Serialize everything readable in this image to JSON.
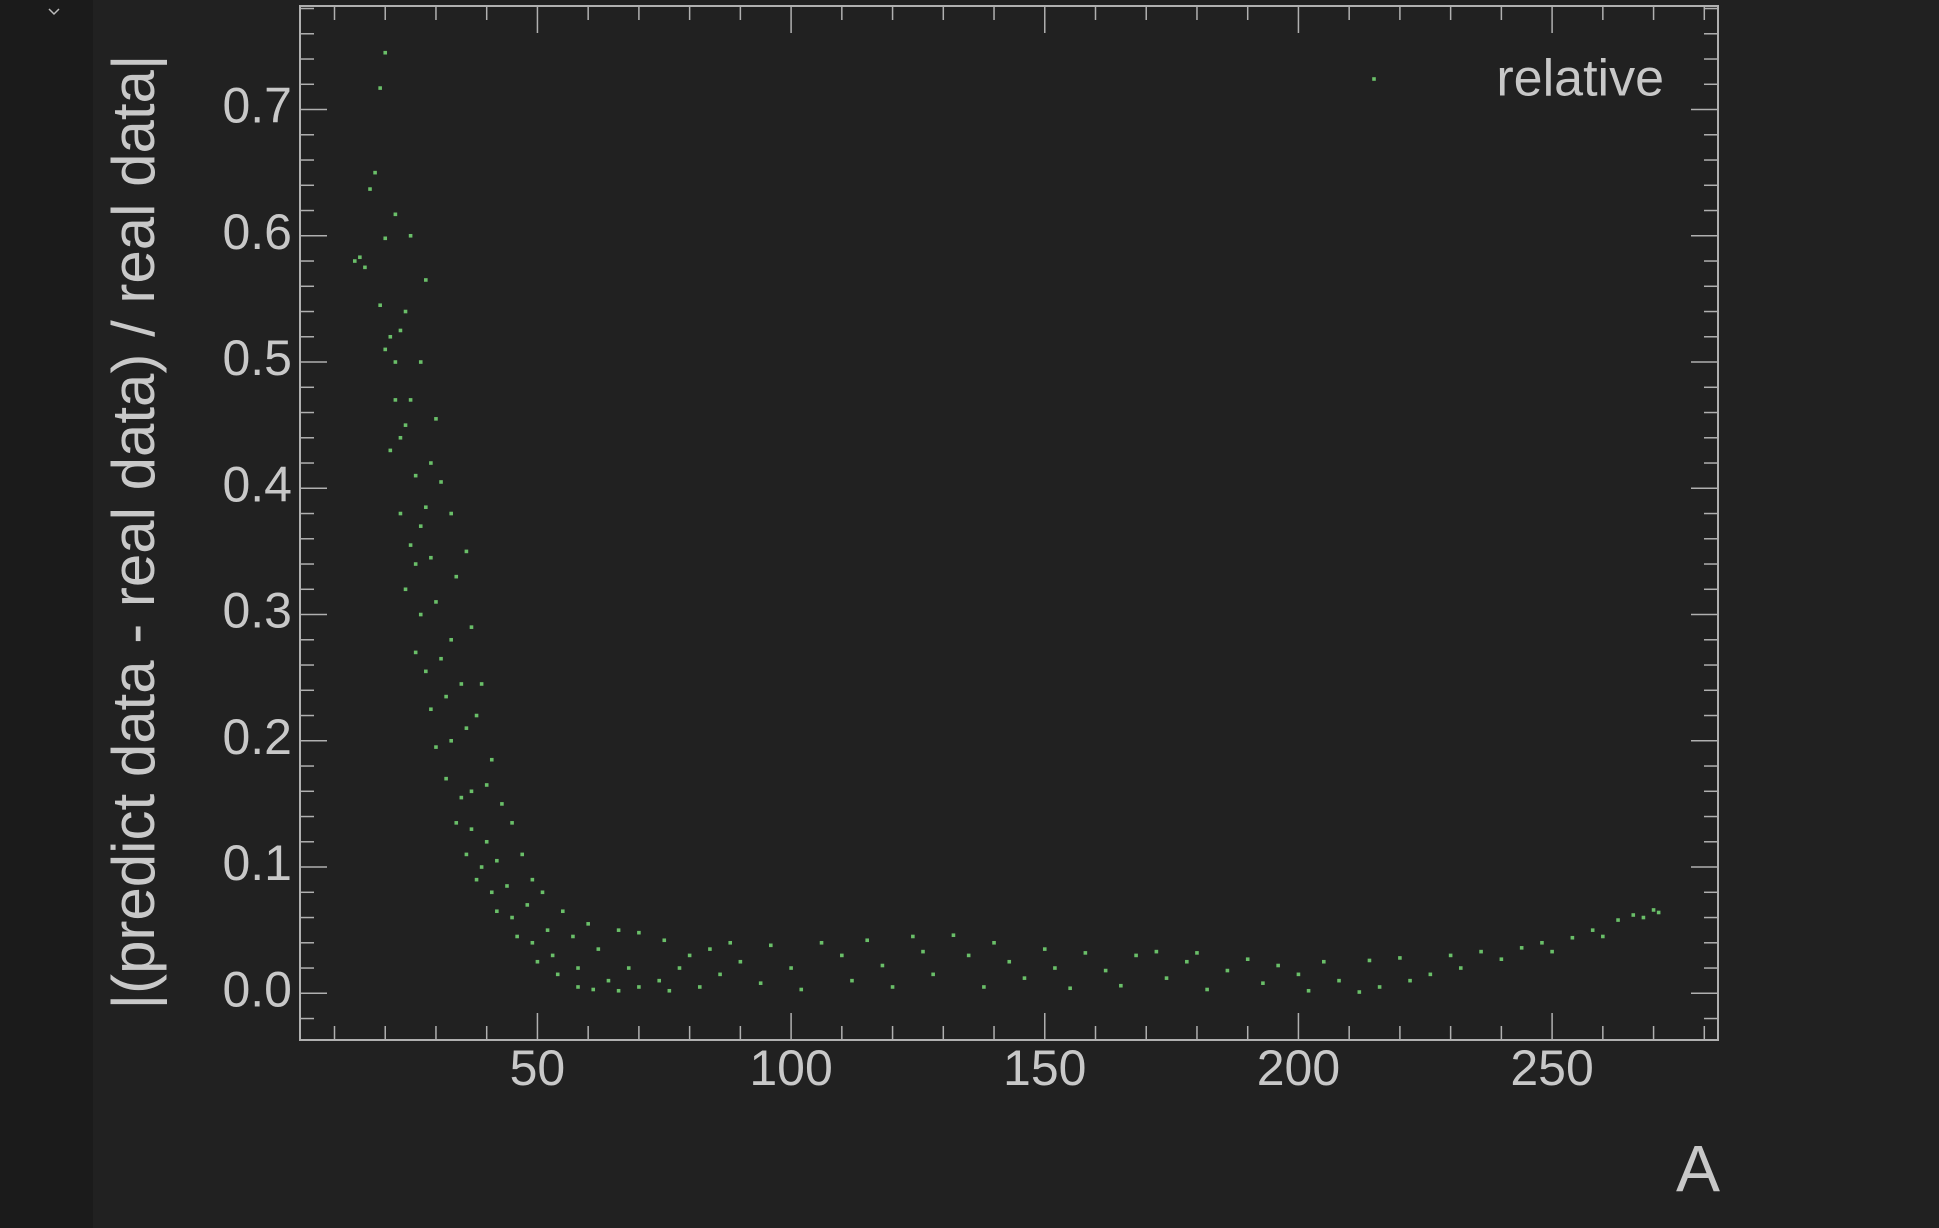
{
  "chart_data": {
    "type": "scatter",
    "x_label": "A",
    "y_label": "|(predict data - real data) / real data|",
    "xlim": [
      3.2,
      282.7
    ],
    "ylim": [
      -0.037,
      0.782
    ],
    "xticks": [
      50,
      100,
      150,
      200,
      250
    ],
    "yticks": [
      {
        "value": 0,
        "label": "0.0"
      },
      0.1,
      0.2,
      0.3,
      0.4,
      0.5,
      0.6,
      0.7
    ],
    "x_minor_ticks": [
      10,
      20,
      30,
      40,
      60,
      70,
      80,
      90,
      110,
      120,
      130,
      140,
      160,
      170,
      180,
      190,
      210,
      220,
      230,
      240,
      260,
      270,
      280
    ],
    "y_minor_ticks": [
      -0.02,
      0.02,
      0.04,
      0.06,
      0.08,
      0.12,
      0.14,
      0.16,
      0.18,
      0.22,
      0.24,
      0.26,
      0.28,
      0.32,
      0.34,
      0.36,
      0.38,
      0.42,
      0.44,
      0.46,
      0.48,
      0.52,
      0.54,
      0.56,
      0.58,
      0.62,
      0.64,
      0.66,
      0.68,
      0.72,
      0.74,
      0.76,
      0.78
    ],
    "legend": "upper right",
    "x": [
      20,
      19,
      18,
      17,
      14,
      15,
      16,
      20,
      22,
      25,
      28,
      19,
      21,
      23,
      24,
      22,
      20,
      25,
      27,
      30,
      22,
      23,
      21,
      24,
      26,
      28,
      29,
      31,
      27,
      23,
      25,
      26,
      29,
      33,
      24,
      27,
      30,
      34,
      36,
      26,
      28,
      31,
      33,
      37,
      29,
      32,
      35,
      39,
      30,
      33,
      36,
      38,
      41,
      32,
      35,
      37,
      40,
      43,
      34,
      37,
      40,
      45,
      36,
      39,
      42,
      47,
      38,
      41,
      44,
      49,
      42,
      45,
      48,
      51,
      46,
      49,
      52,
      55,
      50,
      53,
      57,
      60,
      54,
      58,
      62,
      66,
      58,
      61,
      64,
      68,
      70,
      75,
      66,
      70,
      74,
      78,
      80,
      84,
      76,
      82,
      86,
      88,
      90,
      94,
      96,
      100,
      102,
      106,
      110,
      112,
      115,
      118,
      120,
      124,
      126,
      128,
      132,
      135,
      138,
      140,
      143,
      146,
      150,
      152,
      155,
      158,
      162,
      165,
      168,
      172,
      174,
      178,
      180,
      182,
      186,
      190,
      193,
      196,
      200,
      202,
      205,
      208,
      212,
      214,
      216,
      220,
      222,
      226,
      230,
      232,
      236,
      240,
      244,
      248,
      250,
      254,
      258,
      260,
      263,
      266,
      268,
      270,
      271
    ],
    "series": [
      {
        "name": "relative",
        "color": "#6abf69",
        "values": [
          0.745,
          0.717,
          0.65,
          0.637,
          0.58,
          0.583,
          0.575,
          0.598,
          0.617,
          0.6,
          0.565,
          0.545,
          0.52,
          0.525,
          0.54,
          0.5,
          0.51,
          0.47,
          0.5,
          0.455,
          0.47,
          0.44,
          0.43,
          0.45,
          0.41,
          0.385,
          0.42,
          0.405,
          0.37,
          0.38,
          0.355,
          0.34,
          0.345,
          0.38,
          0.32,
          0.3,
          0.31,
          0.33,
          0.35,
          0.27,
          0.255,
          0.265,
          0.28,
          0.29,
          0.225,
          0.235,
          0.245,
          0.245,
          0.195,
          0.2,
          0.21,
          0.22,
          0.185,
          0.17,
          0.155,
          0.16,
          0.165,
          0.15,
          0.135,
          0.13,
          0.12,
          0.135,
          0.11,
          0.1,
          0.105,
          0.11,
          0.09,
          0.08,
          0.085,
          0.09,
          0.065,
          0.06,
          0.07,
          0.08,
          0.045,
          0.04,
          0.05,
          0.065,
          0.025,
          0.03,
          0.045,
          0.055,
          0.015,
          0.02,
          0.035,
          0.05,
          0.005,
          0.003,
          0.01,
          0.02,
          0.048,
          0.042,
          0.002,
          0.005,
          0.01,
          0.02,
          0.03,
          0.035,
          0.002,
          0.005,
          0.015,
          0.04,
          0.025,
          0.008,
          0.038,
          0.02,
          0.003,
          0.04,
          0.03,
          0.01,
          0.042,
          0.022,
          0.005,
          0.045,
          0.033,
          0.015,
          0.046,
          0.03,
          0.005,
          0.04,
          0.025,
          0.012,
          0.035,
          0.02,
          0.004,
          0.032,
          0.018,
          0.006,
          0.03,
          0.033,
          0.012,
          0.025,
          0.032,
          0.003,
          0.018,
          0.027,
          0.008,
          0.022,
          0.015,
          0.002,
          0.025,
          0.01,
          0.001,
          0.026,
          0.005,
          0.028,
          0.01,
          0.015,
          0.03,
          0.02,
          0.033,
          0.027,
          0.036,
          0.04,
          0.033,
          0.044,
          0.05,
          0.045,
          0.058,
          0.062,
          0.06,
          0.066,
          0.064
        ]
      }
    ]
  }
}
